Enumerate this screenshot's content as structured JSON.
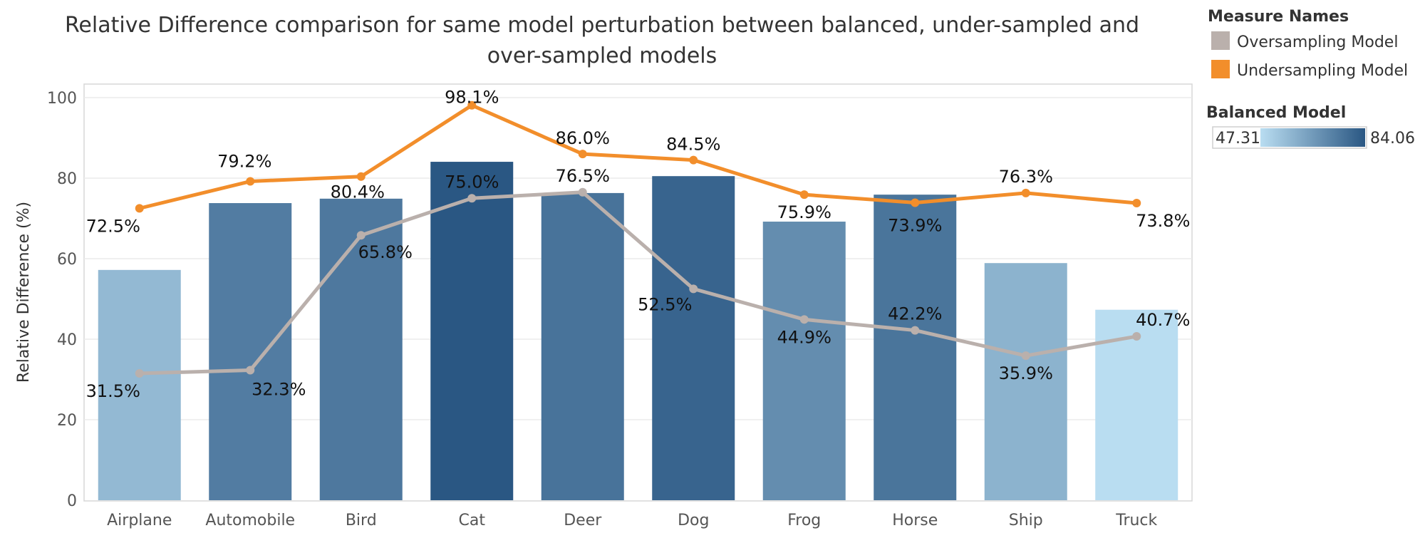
{
  "chart_data": {
    "type": "bar",
    "title": "Relative Difference comparison for same model perturbation between balanced, under-sampled and over-sampled models",
    "title_lines": [
      "Relative Difference comparison for same model perturbation between balanced, under-sampled and",
      "over-sampled models"
    ],
    "xlabel": "",
    "ylabel": "Relative Difference (%)",
    "ylim": [
      0,
      100
    ],
    "yticks": [
      0,
      20,
      40,
      60,
      80,
      100
    ],
    "grid": true,
    "categories": [
      "Airplane",
      "Automobile",
      "Bird",
      "Cat",
      "Deer",
      "Dog",
      "Frog",
      "Horse",
      "Ship",
      "Truck"
    ],
    "bars": {
      "name": "Balanced Model",
      "values": [
        57.2,
        73.8,
        74.9,
        84.06,
        76.3,
        80.5,
        69.2,
        75.9,
        58.9,
        47.31
      ]
    },
    "series": [
      {
        "name": "Undersampling Model",
        "type": "line",
        "color": "#f28e2b",
        "values": [
          72.5,
          79.2,
          80.4,
          98.1,
          86.0,
          84.5,
          75.9,
          73.9,
          76.3,
          73.8
        ],
        "labels": [
          "72.5%",
          "79.2%",
          "80.4%",
          "98.1%",
          "86.0%",
          "84.5%",
          "75.9%",
          "73.9%",
          "76.3%",
          "73.8%"
        ]
      },
      {
        "name": "Oversampling Model",
        "type": "line",
        "color": "#bab0ac",
        "values": [
          31.5,
          32.3,
          65.8,
          75.0,
          76.5,
          52.5,
          44.9,
          42.2,
          35.9,
          40.7
        ],
        "labels": [
          "31.5%",
          "32.3%",
          "65.8%",
          "75.0%",
          "76.5%",
          "52.5%",
          "44.9%",
          "42.2%",
          "35.9%",
          "40.7%"
        ]
      }
    ],
    "legend": {
      "placement": "right",
      "measure_title": "Measure Names",
      "measure_items": [
        {
          "label": "Oversampling Model",
          "color": "#bab0ac"
        },
        {
          "label": "Undersampling Model",
          "color": "#f28e2b"
        }
      ],
      "color_title": "Balanced Model",
      "color_min": "47.31",
      "color_max": "84.06",
      "color_min_value": 47.31,
      "color_max_value": 84.06,
      "color_low": "#b9ddf1",
      "color_high": "#2a5783"
    }
  }
}
